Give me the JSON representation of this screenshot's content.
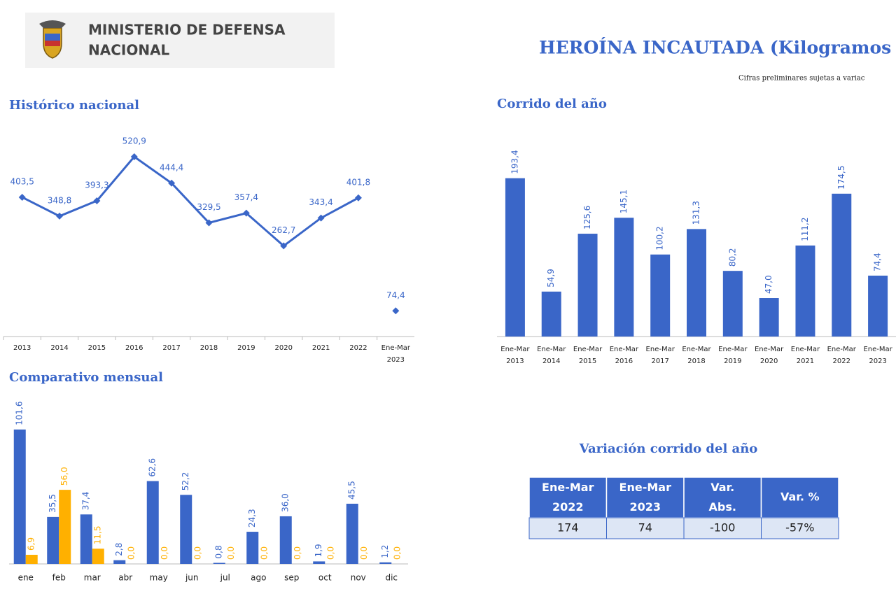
{
  "header": {
    "ministry": [
      "MINISTERIO DE DEFENSA",
      "NACIONAL"
    ]
  },
  "title": "HEROÍNA INCAUTADA (Kilogramos",
  "note": "Cifras preliminares sujetas a variac",
  "chart_data": [
    {
      "type": "line",
      "title": "Histórico nacional",
      "categories": [
        "2013",
        "2014",
        "2015",
        "2016",
        "2017",
        "2018",
        "2019",
        "2020",
        "2021",
        "2022",
        "Ene-Mar 2023"
      ],
      "series": [
        {
          "color": "#3a66c8",
          "values": [
            403.5,
            348.8,
            393.3,
            520.9,
            444.4,
            329.5,
            357.4,
            262.7,
            343.4,
            401.8,
            null
          ],
          "value_labels": [
            "403,5",
            "348,8",
            "393,3",
            "520,9",
            "444,4",
            "329,5",
            "357,4",
            "262,7",
            "343,4",
            "401,8",
            null
          ]
        },
        {
          "color": "#3a66c8",
          "values": [
            null,
            null,
            null,
            null,
            null,
            null,
            null,
            null,
            null,
            null,
            74.4
          ],
          "value_labels": [
            null,
            null,
            null,
            null,
            null,
            null,
            null,
            null,
            null,
            null,
            "74,4"
          ]
        }
      ],
      "ylim": [
        0,
        600
      ]
    },
    {
      "type": "bar",
      "title": "Corrido del año",
      "categories": [
        "Ene-Mar 2013",
        "Ene-Mar 2014",
        "Ene-Mar 2015",
        "Ene-Mar 2016",
        "Ene-Mar 2017",
        "Ene-Mar 2018",
        "Ene-Mar 2019",
        "Ene-Mar 2020",
        "Ene-Mar 2021",
        "Ene-Mar 2022",
        "Ene-Mar 2023"
      ],
      "series": [
        {
          "color": "#3a66c8",
          "values": [
            193.4,
            54.9,
            125.6,
            145.1,
            100.2,
            131.3,
            80.2,
            47.0,
            111.2,
            174.5,
            74.4
          ],
          "value_labels": [
            "193,4",
            "54,9",
            "125,6",
            "145,1",
            "100,2",
            "131,3",
            "80,2",
            "47,0",
            "111,2",
            "174,5",
            "74,4"
          ]
        }
      ],
      "ylim": [
        0,
        200
      ]
    },
    {
      "type": "bar",
      "title": "Comparativo mensual",
      "categories": [
        "ene",
        "feb",
        "mar",
        "abr",
        "may",
        "jun",
        "jul",
        "ago",
        "sep",
        "oct",
        "nov",
        "dic"
      ],
      "series": [
        {
          "color": "#3a66c8",
          "values": [
            101.6,
            35.5,
            37.4,
            2.8,
            62.6,
            52.2,
            0.8,
            24.3,
            36.0,
            1.9,
            45.5,
            1.2
          ],
          "value_labels": [
            "101,6",
            "35,5",
            "37,4",
            "2,8",
            "62,6",
            "52,2",
            "0,8",
            "24,3",
            "36,0",
            "1,9",
            "45,5",
            "1,2"
          ]
        },
        {
          "color": "#ffb000",
          "values": [
            6.9,
            56.0,
            11.5,
            0.0,
            0.0,
            0.0,
            0.0,
            0.0,
            0.0,
            0.0,
            0.0,
            0.0
          ],
          "value_labels": [
            "6,9",
            "56,0",
            "11,5",
            "0,0",
            "0,0",
            "0,0",
            "0,0",
            "0,0",
            "0,0",
            "0,0",
            "0,0",
            "0,0"
          ]
        }
      ],
      "ylim": [
        0,
        110
      ]
    }
  ],
  "table": {
    "title": "Variación corrido del año",
    "header": [
      "Ene-Mar 2022",
      "Ene-Mar 2023",
      "Var. Abs.",
      "Var. %"
    ],
    "rows": [
      [
        "174",
        "74",
        "-100",
        "-57%"
      ]
    ]
  }
}
